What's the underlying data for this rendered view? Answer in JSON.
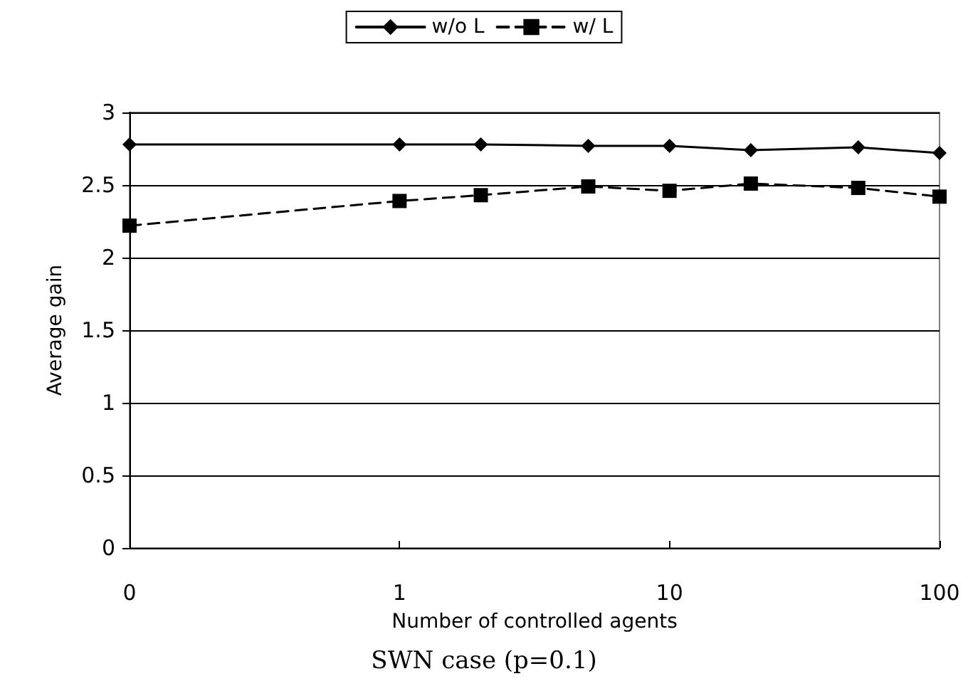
{
  "chart_data": {
    "type": "line",
    "title": "SWN case (p=0.1)",
    "xlabel": "Number of controlled agents",
    "ylabel": "Average gain",
    "x": [
      0.1,
      1,
      2,
      5,
      10,
      20,
      50,
      100
    ],
    "series": [
      {
        "name": "w/o L",
        "color": "#000000",
        "marker": "diamond",
        "line_style": "solid",
        "values": [
          2.78,
          2.78,
          2.78,
          2.77,
          2.77,
          2.74,
          2.76,
          2.72
        ]
      },
      {
        "name": "w/ L",
        "color": "#000000",
        "marker": "square",
        "line_style": "dashed",
        "values": [
          2.22,
          2.39,
          2.43,
          2.49,
          2.46,
          2.51,
          2.48,
          2.42
        ]
      }
    ],
    "log": "x",
    "xlim": [
      0.1,
      100
    ],
    "xticks": [
      {
        "value": 0.1,
        "label": "0"
      },
      1,
      10,
      100
    ],
    "ylim": [
      0,
      3
    ],
    "yticks": [
      0,
      0.5,
      1,
      1.5,
      2,
      2.5,
      3
    ],
    "grid": "y",
    "legend": "top"
  }
}
